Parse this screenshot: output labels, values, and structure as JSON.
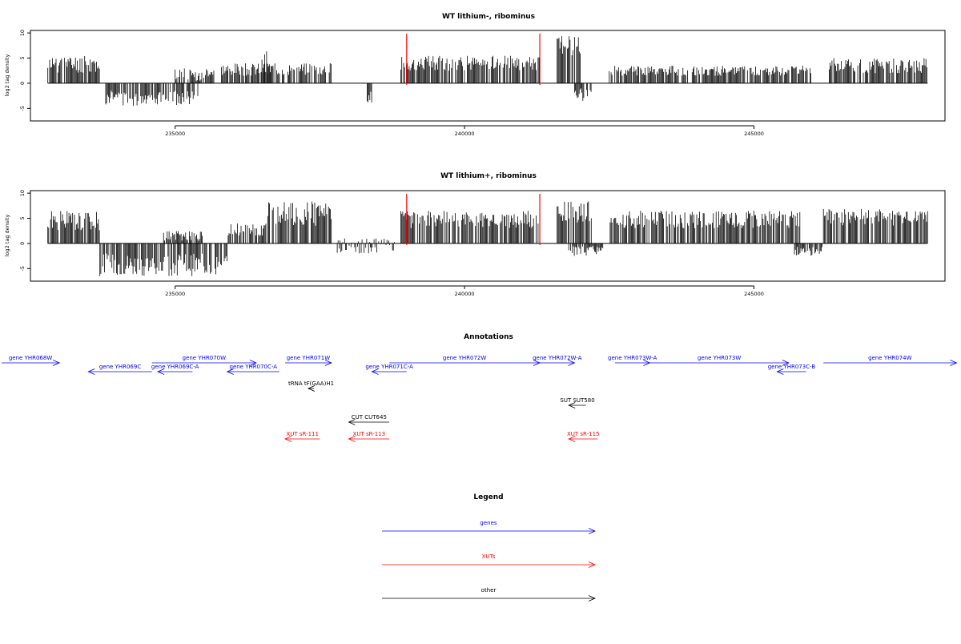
{
  "chart_data": [
    {
      "type": "bar",
      "title": "WT lithium-, ribominus",
      "ylabel": "log2 tag density",
      "yticks": [
        "10",
        "5",
        "0",
        "-5"
      ],
      "xticks": [
        {
          "value": 235000,
          "label": "235000"
        },
        {
          "value": 240000,
          "label": "240000"
        },
        {
          "value": 245000,
          "label": "245000"
        }
      ],
      "xlim": [
        232500,
        248300
      ],
      "ylim": [
        -7.5,
        10.5
      ],
      "marker_color": "#ff0000",
      "markers": [
        239000,
        241300
      ],
      "segments": [
        {
          "from": 232800,
          "to": 233700,
          "lo": 2.0,
          "hi": 5.5,
          "seed": 11
        },
        {
          "from": 233800,
          "to": 235400,
          "lo": -4.5,
          "hi": -1.5,
          "seed": 12
        },
        {
          "from": 235000,
          "to": 235700,
          "lo": 0.5,
          "hi": 3.0,
          "seed": 13
        },
        {
          "from": 235800,
          "to": 237700,
          "lo": 1.5,
          "hi": 4.0,
          "seed": 14
        },
        {
          "from": 236500,
          "to": 236700,
          "lo": 3.0,
          "hi": 6.5,
          "seed": 15
        },
        {
          "from": 238300,
          "to": 238400,
          "lo": -4.0,
          "hi": -1.5,
          "seed": 16
        },
        {
          "from": 238900,
          "to": 241300,
          "lo": 2.5,
          "hi": 5.5,
          "seed": 17
        },
        {
          "from": 241600,
          "to": 242000,
          "lo": 5.0,
          "hi": 9.5,
          "seed": 18
        },
        {
          "from": 241900,
          "to": 242200,
          "lo": -3.5,
          "hi": -1.0,
          "seed": 19
        },
        {
          "from": 242500,
          "to": 246000,
          "lo": 1.5,
          "hi": 3.5,
          "seed": 20
        },
        {
          "from": 246300,
          "to": 248000,
          "lo": 2.0,
          "hi": 5.0,
          "seed": 21
        }
      ]
    },
    {
      "type": "bar",
      "title": "WT lithium+, ribominus",
      "ylabel": "log2 tag density",
      "yticks": [
        "10",
        "5",
        "0",
        "-5"
      ],
      "xticks": [
        {
          "value": 235000,
          "label": "235000"
        },
        {
          "value": 240000,
          "label": "240000"
        },
        {
          "value": 245000,
          "label": "245000"
        }
      ],
      "xlim": [
        232500,
        248300
      ],
      "ylim": [
        -7.5,
        10.5
      ],
      "marker_color": "#ff0000",
      "markers": [
        239000,
        241300
      ],
      "segments": [
        {
          "from": 232800,
          "to": 233700,
          "lo": 2.5,
          "hi": 6.5,
          "seed": 31
        },
        {
          "from": 233700,
          "to": 235900,
          "lo": -6.5,
          "hi": -2.0,
          "seed": 32
        },
        {
          "from": 234800,
          "to": 235500,
          "lo": 0.5,
          "hi": 2.5,
          "seed": 33
        },
        {
          "from": 235900,
          "to": 236600,
          "lo": 1.5,
          "hi": 4.0,
          "seed": 34
        },
        {
          "from": 236600,
          "to": 237700,
          "lo": 3.5,
          "hi": 8.5,
          "seed": 35
        },
        {
          "from": 237800,
          "to": 238800,
          "lo": -2.5,
          "hi": 1.0,
          "seed": 36
        },
        {
          "from": 238900,
          "to": 241300,
          "lo": 3.0,
          "hi": 6.5,
          "seed": 37
        },
        {
          "from": 241600,
          "to": 242200,
          "lo": 3.5,
          "hi": 8.5,
          "seed": 38
        },
        {
          "from": 241800,
          "to": 242400,
          "lo": -2.5,
          "hi": -0.5,
          "seed": 39
        },
        {
          "from": 242500,
          "to": 245800,
          "lo": 3.0,
          "hi": 6.5,
          "seed": 40
        },
        {
          "from": 245700,
          "to": 246200,
          "lo": -2.5,
          "hi": -0.5,
          "seed": 41
        },
        {
          "from": 246200,
          "to": 248000,
          "lo": 3.5,
          "hi": 7.0,
          "seed": 42
        }
      ]
    }
  ],
  "annotations": {
    "title": "Annotations",
    "items": [
      {
        "label": "gene YHR068W",
        "start": 231800,
        "end": 233000,
        "strand": "+",
        "row": 0,
        "color": "#0000ff"
      },
      {
        "label": "gene YHR069C",
        "start": 233500,
        "end": 234600,
        "strand": "-",
        "row": 1,
        "color": "#0000ff"
      },
      {
        "label": "gene YHR069C-A",
        "start": 234700,
        "end": 235300,
        "strand": "-",
        "row": 1,
        "color": "#0000ff"
      },
      {
        "label": "gene YHR070W",
        "start": 234600,
        "end": 236400,
        "strand": "+",
        "row": 0,
        "color": "#0000ff"
      },
      {
        "label": "gene YHR070C-A",
        "start": 235900,
        "end": 236800,
        "strand": "-",
        "row": 1,
        "color": "#0000ff"
      },
      {
        "label": "gene YHR071W",
        "start": 236900,
        "end": 237700,
        "strand": "+",
        "row": 0,
        "color": "#0000ff"
      },
      {
        "label": "gene YHR071C-A",
        "start": 238400,
        "end": 239000,
        "strand": "-",
        "row": 1,
        "color": "#0000ff"
      },
      {
        "label": "gene YHR072W",
        "start": 238700,
        "end": 241300,
        "strand": "+",
        "row": 0,
        "color": "#0000ff"
      },
      {
        "label": "gene YHR072W-A",
        "start": 241300,
        "end": 241900,
        "strand": "+",
        "row": 0,
        "color": "#0000ff"
      },
      {
        "label": "gene YHR073W-A",
        "start": 242600,
        "end": 243200,
        "strand": "+",
        "row": 0,
        "color": "#0000ff"
      },
      {
        "label": "gene YHR073W",
        "start": 243200,
        "end": 245600,
        "strand": "+",
        "row": 0,
        "color": "#0000ff"
      },
      {
        "label": "gene YHR073C-B",
        "start": 245400,
        "end": 245900,
        "strand": "-",
        "row": 1,
        "color": "#0000ff"
      },
      {
        "label": "gene YHR074W",
        "start": 246200,
        "end": 248500,
        "strand": "+",
        "row": 0,
        "color": "#0000ff"
      },
      {
        "label": "tRNA tF(GAA)H1",
        "start": 237300,
        "end": 237400,
        "strand": "-",
        "row": 2,
        "color": "#000000"
      },
      {
        "label": "SUT SUT580",
        "start": 241800,
        "end": 242100,
        "strand": "-",
        "row": 3,
        "color": "#000000"
      },
      {
        "label": "CUT CUT645",
        "start": 238000,
        "end": 238700,
        "strand": "-",
        "row": 4,
        "color": "#000000"
      },
      {
        "label": "XUT sR-111",
        "start": 236900,
        "end": 237500,
        "strand": "-",
        "row": 5,
        "color": "#ff0000"
      },
      {
        "label": "XUT sR-113",
        "start": 238000,
        "end": 238700,
        "strand": "-",
        "row": 5,
        "color": "#ff0000"
      },
      {
        "label": "XUT sR-115",
        "start": 241800,
        "end": 242300,
        "strand": "-",
        "row": 5,
        "color": "#ff0000"
      }
    ]
  },
  "legend": {
    "title": "Legend",
    "items": [
      {
        "label": "genes",
        "color": "#0000ff"
      },
      {
        "label": "XUTs",
        "color": "#ff0000"
      },
      {
        "label": "other",
        "color": "#000000"
      }
    ]
  }
}
